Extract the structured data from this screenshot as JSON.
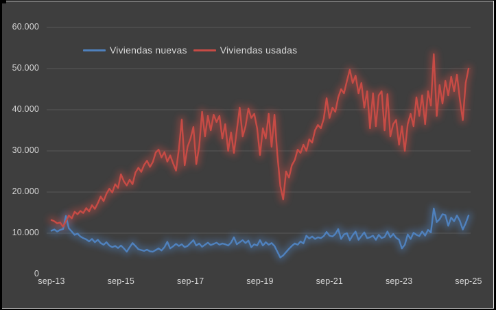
{
  "chart": {
    "background": "#3E3E3E",
    "frame_color": "#000000",
    "sheet_edge_color": "#E8E8E8",
    "text_color": "#D6D6D6",
    "grid_color": "#585858"
  },
  "legend": {
    "position": "top",
    "items": [
      {
        "label": "Viviendas nuevas",
        "color": "#4F81BD"
      },
      {
        "label": "Viviendas usadas",
        "color": "#C74B45"
      }
    ]
  },
  "chart_data": {
    "type": "line",
    "x_start": "sep-13",
    "x_end": "sep-25",
    "x_interval": "monthly",
    "n_points": 145,
    "x_tick_labels": [
      "sep-13",
      "sep-15",
      "sep-17",
      "sep-19",
      "sep-21",
      "sep-23",
      "sep-25"
    ],
    "y_tick_labels": [
      "0",
      "10.000",
      "20.000",
      "30.000",
      "40.000",
      "50.000",
      "60.000"
    ],
    "ylim_thousands": [
      0,
      60
    ],
    "values_unit": "thousands",
    "grid": "horizontal-only",
    "legend_position": "top",
    "line_effect": "outer-glow",
    "series": [
      {
        "name": "Viviendas nuevas",
        "color": "#4F81BD",
        "values": [
          10.6,
          10.9,
          10.4,
          10.8,
          11.0,
          14.2,
          11.2,
          10.4,
          9.6,
          9.9,
          9.2,
          8.8,
          8.5,
          8.0,
          8.6,
          7.8,
          8.4,
          7.6,
          7.2,
          7.8,
          7.0,
          6.6,
          6.9,
          6.4,
          7.0,
          6.3,
          5.5,
          6.6,
          7.6,
          6.9,
          6.1,
          5.9,
          5.7,
          6.0,
          5.6,
          5.5,
          5.9,
          6.3,
          5.8,
          6.6,
          7.9,
          6.3,
          6.8,
          7.4,
          6.9,
          7.3,
          6.6,
          6.9,
          7.6,
          8.3,
          7.0,
          7.5,
          6.7,
          7.2,
          7.7,
          7.1,
          7.4,
          7.7,
          7.2,
          7.5,
          7.3,
          7.0,
          7.7,
          9.0,
          7.3,
          7.8,
          8.3,
          7.6,
          8.2,
          6.6,
          7.3,
          7.0,
          8.3,
          7.0,
          7.8,
          7.2,
          7.6,
          6.9,
          5.5,
          4.1,
          4.6,
          5.4,
          6.2,
          6.9,
          7.5,
          7.2,
          8.0,
          7.5,
          9.4,
          8.7,
          9.2,
          8.6,
          9.0,
          8.8,
          9.3,
          10.3,
          9.4,
          9.2,
          9.8,
          11.0,
          8.6,
          9.7,
          10.0,
          8.3,
          9.5,
          10.4,
          8.4,
          9.3,
          10.2,
          8.8,
          9.0,
          9.4,
          8.4,
          9.6,
          8.8,
          9.1,
          10.4,
          9.0,
          9.8,
          8.9,
          8.4,
          6.3,
          7.2,
          9.7,
          8.6,
          10.1,
          9.6,
          9.3,
          10.4,
          9.4,
          10.8,
          10.2,
          16.0,
          12.7,
          13.4,
          14.6,
          14.4,
          11.8,
          13.8,
          12.9,
          14.3,
          13.0,
          10.9,
          12.4,
          14.3
        ]
      },
      {
        "name": "Viviendas usadas",
        "color": "#C74B45",
        "values": [
          13.2,
          12.9,
          12.4,
          12.6,
          11.6,
          12.9,
          14.3,
          13.6,
          15.2,
          14.6,
          15.4,
          14.9,
          16.1,
          15.3,
          16.8,
          15.9,
          17.3,
          18.9,
          17.8,
          19.6,
          20.8,
          19.9,
          21.9,
          21.0,
          24.3,
          22.6,
          21.6,
          23.0,
          21.9,
          24.7,
          25.9,
          24.9,
          26.6,
          27.6,
          26.1,
          27.3,
          29.6,
          30.3,
          28.4,
          29.7,
          27.4,
          28.9,
          27.0,
          25.2,
          30.5,
          37.6,
          26.5,
          31.0,
          33.0,
          35.8,
          26.8,
          31.0,
          39.5,
          33.5,
          38.5,
          35.0,
          38.8,
          37.0,
          38.5,
          33.0,
          36.5,
          30.0,
          34.5,
          29.5,
          35.0,
          40.5,
          33.5,
          36.0,
          40.3,
          38.0,
          39.0,
          35.5,
          29.0,
          35.5,
          33.0,
          39.0,
          31.0,
          38.8,
          29.0,
          21.5,
          18.2,
          25.0,
          23.5,
          26.5,
          27.8,
          30.3,
          29.5,
          31.5,
          30.0,
          32.8,
          32.0,
          35.0,
          36.3,
          35.5,
          37.8,
          42.8,
          38.0,
          40.5,
          39.5,
          43.0,
          45.0,
          44.0,
          47.0,
          49.7,
          46.5,
          48.3,
          44.0,
          46.5,
          40.5,
          44.5,
          35.5,
          44.0,
          36.0,
          43.5,
          44.5,
          35.0,
          43.8,
          33.5,
          36.5,
          37.5,
          31.5,
          36.0,
          30.0,
          36.5,
          39.0,
          36.0,
          43.0,
          38.5,
          43.5,
          36.5,
          44.5,
          41.0,
          53.5,
          38.5,
          46.0,
          41.5,
          47.0,
          43.5,
          48.0,
          44.5,
          48.5,
          42.5,
          37.5,
          46.5,
          50.0
        ]
      }
    ]
  }
}
